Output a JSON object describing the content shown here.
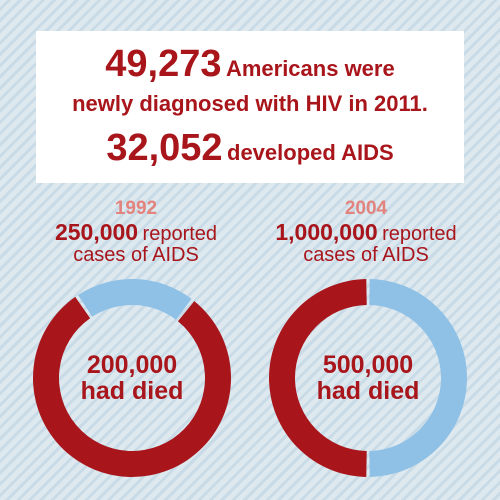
{
  "headline": {
    "diagnosed_number": "49,273",
    "diagnosed_text_1": "Americans were",
    "diagnosed_text_2": "newly diagnosed with HIV in 2011.",
    "aids_number": "32,052",
    "aids_text": "developed AIDS"
  },
  "colors": {
    "dark_red": "#a8151b",
    "light_red": "#e2837e",
    "light_blue": "#8fc1e6",
    "background": "#dde8ef"
  },
  "chart_data": [
    {
      "type": "pie",
      "variant": "donut",
      "year": "1992",
      "reported_number": "250,000",
      "reported_text_1": "reported",
      "reported_text_2": "cases of AIDS",
      "center_number": "200,000",
      "center_text": "had died",
      "total": 250000,
      "slices": [
        {
          "label": "had died",
          "value": 200000,
          "color": "#a8151b"
        },
        {
          "label": "",
          "value": 50000,
          "color": "#8fc1e6"
        }
      ]
    },
    {
      "type": "pie",
      "variant": "donut",
      "year": "2004",
      "reported_number": "1,000,000",
      "reported_text_1": "reported",
      "reported_text_2": "cases of AIDS",
      "center_number": "500,000",
      "center_text": "had died",
      "total": 1000000,
      "slices": [
        {
          "label": "had died",
          "value": 500000,
          "color": "#a8151b"
        },
        {
          "label": "",
          "value": 500000,
          "color": "#8fc1e6"
        }
      ]
    }
  ]
}
